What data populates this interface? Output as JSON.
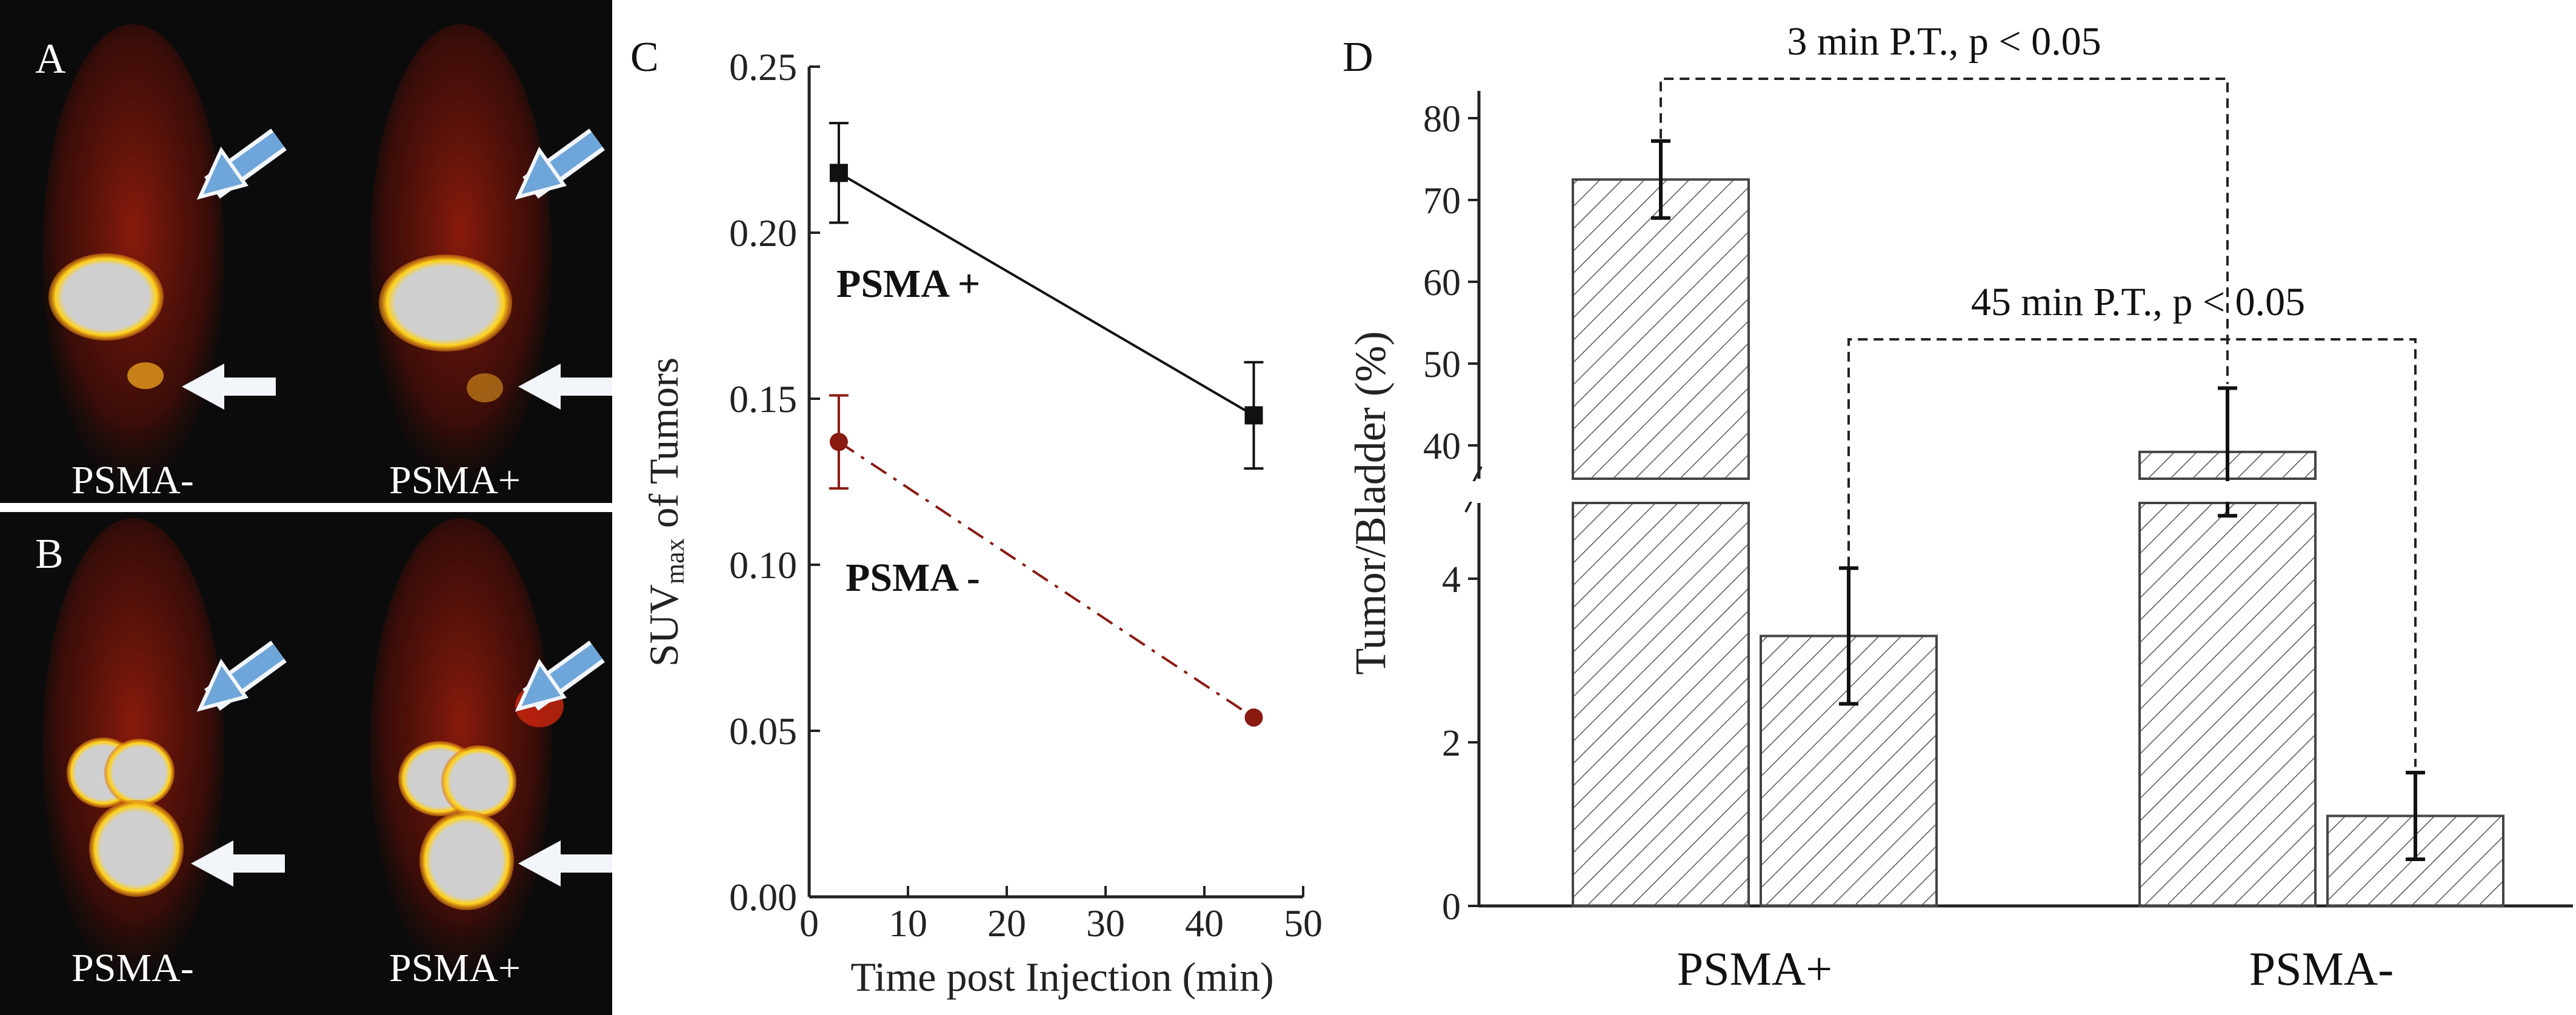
{
  "panels": {
    "A": {
      "letter": "A",
      "left_label": "PSMA-",
      "right_label": "PSMA+"
    },
    "B": {
      "letter": "B",
      "left_label": "PSMA-",
      "right_label": "PSMA+"
    },
    "C": {
      "letter": "C"
    },
    "D": {
      "letter": "D"
    }
  },
  "colors": {
    "image_bg": "#0b0b0b",
    "uptake_red": "#b3200c",
    "uptake_hot": "#ffd21a",
    "saturated": "#cfcfcf",
    "arrow_blue": "#6fa6d9",
    "arrow_white": "#f2f6fb",
    "series_pos": "#111111",
    "series_neg": "#8b1a12",
    "hatch": "#555555"
  },
  "chart_data": [
    {
      "panel": "C",
      "type": "line",
      "xlabel": "Time post Injection (min)",
      "ylabel_prefix": "SUV",
      "ylabel_sub": "max",
      "ylabel_suffix": " of Tumors",
      "xlim": [
        0,
        50
      ],
      "ylim": [
        0.0,
        0.25
      ],
      "xticks": [
        0,
        10,
        20,
        30,
        40,
        50
      ],
      "yticks": [
        0.0,
        0.05,
        0.1,
        0.15,
        0.2,
        0.25
      ],
      "ytick_labels": [
        "0.00",
        "0.05",
        "0.10",
        "0.15",
        "0.20",
        "0.25"
      ],
      "grid": false,
      "series": [
        {
          "name": "PSMA +",
          "marker": "square",
          "line": "solid",
          "color": "#111111",
          "x": [
            3,
            45
          ],
          "y": [
            0.218,
            0.145
          ],
          "err": [
            0.015,
            0.016
          ]
        },
        {
          "name": "PSMA -",
          "marker": "circle",
          "line": "dashdot",
          "color": "#8b1a12",
          "x": [
            3,
            45
          ],
          "y": [
            0.137,
            0.054
          ],
          "err": [
            0.014,
            0.0
          ]
        }
      ]
    },
    {
      "panel": "D",
      "type": "bar",
      "ylabel": "Tumor/Bladder (%)",
      "categories": [
        "PSMA+",
        "PSMA-"
      ],
      "broken_axis": true,
      "lower_ticks": [
        0,
        2,
        4
      ],
      "upper_ticks": [
        40,
        50,
        60,
        70,
        80
      ],
      "series": [
        {
          "values": [
            72.5,
            39.2
          ],
          "err": [
            4.7,
            7.8
          ]
        },
        {
          "values": [
            3.3,
            1.1
          ],
          "err": [
            0.83,
            0.53
          ]
        }
      ],
      "annotations": [
        {
          "text": "3 min P.T., p < 0.05",
          "from_bar": [
            0,
            0
          ],
          "to_bar": [
            1,
            0
          ]
        },
        {
          "text": "45 min P.T., p < 0.05",
          "from_bar": [
            0,
            1
          ],
          "to_bar": [
            1,
            1
          ]
        }
      ]
    }
  ]
}
